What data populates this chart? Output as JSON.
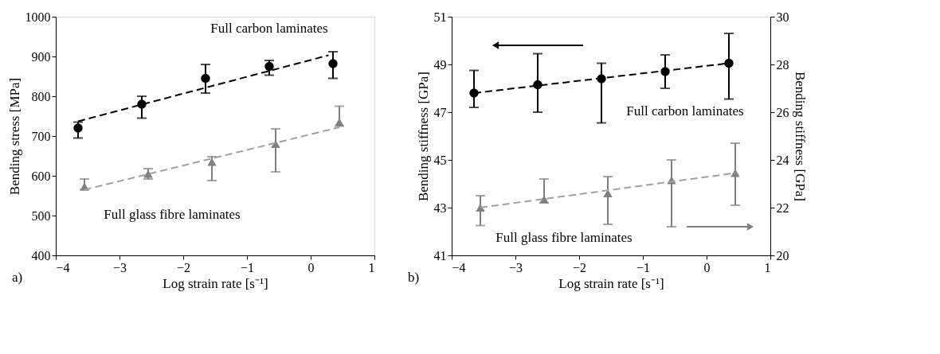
{
  "chart_data": [
    {
      "type": "scatter",
      "xlabel": "Log strain rate [s⁻¹]",
      "ylabel": "Bending stress [MPa]",
      "xlim": [
        -4,
        1
      ],
      "xticks": [
        -4,
        -3,
        -2,
        -1,
        0,
        1
      ],
      "ylim": [
        400,
        1000
      ],
      "yticks": [
        400,
        500,
        600,
        700,
        800,
        900,
        {
          "value": 1000,
          "label": "1000"
        }
      ],
      "grid": false,
      "annotations": [
        "a)"
      ],
      "series": [
        {
          "name": "Full carbon laminates",
          "color": "#000000",
          "marker": "circle",
          "x": [
            -3.65,
            -2.65,
            -1.65,
            -0.65,
            0.35
          ],
          "values": [
            720,
            780,
            845,
            875,
            882
          ],
          "errors": [
            [
              695,
              735
            ],
            [
              745,
              800
            ],
            [
              808,
              880
            ],
            [
              853,
              890
            ],
            [
              845,
              912
            ]
          ]
        },
        {
          "name": "Full glass fibre laminates",
          "color": "#808080",
          "marker": "triangle",
          "x": [
            -3.55,
            -2.55,
            -1.55,
            -0.55,
            0.45
          ],
          "values": [
            573,
            605,
            635,
            680,
            735
          ],
          "errors": [
            [
              565,
              592
            ],
            [
              592,
              618
            ],
            [
              588,
              648
            ],
            [
              610,
              718
            ],
            [
              725,
              775
            ]
          ]
        },
        {
          "type": "line",
          "color": "#000000",
          "line_style": "dashed",
          "marker": "none",
          "x": [
            -3.65,
            0.28
          ],
          "values": [
            737,
            903
          ]
        },
        {
          "type": "line",
          "color": "#a0a0a0",
          "line_style": "dashed",
          "marker": "none",
          "x": [
            -3.55,
            0.45
          ],
          "values": [
            565,
            722
          ]
        }
      ]
    },
    {
      "type": "scatter",
      "xlabel": "Log strain rate [s⁻¹]",
      "ylabel": "Bending stiffness [GPa]",
      "y2label": "Bending stiffness [GPa]",
      "xlim": [
        -4,
        1
      ],
      "xticks": [
        -4,
        -3,
        -2,
        -1,
        0,
        1
      ],
      "ylim": [
        41,
        51
      ],
      "yticks": [
        41,
        43,
        45,
        47,
        49,
        51
      ],
      "y2lim": [
        20,
        30
      ],
      "y2ticks": [
        20,
        22,
        24,
        26,
        28,
        30
      ],
      "grid": false,
      "annotations": [
        "b)"
      ],
      "series": [
        {
          "name": "Full carbon laminates",
          "color": "#000000",
          "marker": "circle",
          "x": [
            -3.65,
            -2.65,
            -1.65,
            -0.65,
            0.35
          ],
          "values": [
            47.8,
            48.15,
            48.4,
            48.7,
            49.05
          ],
          "errors": [
            [
              47.2,
              48.75
            ],
            [
              47.0,
              49.45
            ],
            [
              46.55,
              49.05
            ],
            [
              48.0,
              49.4
            ],
            [
              47.55,
              50.3
            ]
          ]
        },
        {
          "name": "Full glass fibre laminates",
          "color": "#808080",
          "marker": "triangle",
          "axis": "y2",
          "x": [
            -3.55,
            -2.55,
            -1.55,
            -0.55,
            0.45
          ],
          "values": [
            22.0,
            22.35,
            22.6,
            23.15,
            23.45
          ],
          "errors": [
            [
              21.25,
              22.5
            ],
            [
              22.2,
              23.2
            ],
            [
              21.3,
              23.3
            ],
            [
              21.2,
              24.0
            ],
            [
              22.1,
              24.7
            ]
          ]
        },
        {
          "type": "line",
          "color": "#000000",
          "line_style": "dashed",
          "marker": "none",
          "x": [
            -3.65,
            0.35
          ],
          "values": [
            47.8,
            49.05
          ]
        },
        {
          "type": "line",
          "color": "#a0a0a0",
          "line_style": "dashed",
          "marker": "none",
          "axis": "y2",
          "x": [
            -3.55,
            0.45
          ],
          "values": [
            22.0,
            23.45
          ]
        }
      ]
    }
  ]
}
